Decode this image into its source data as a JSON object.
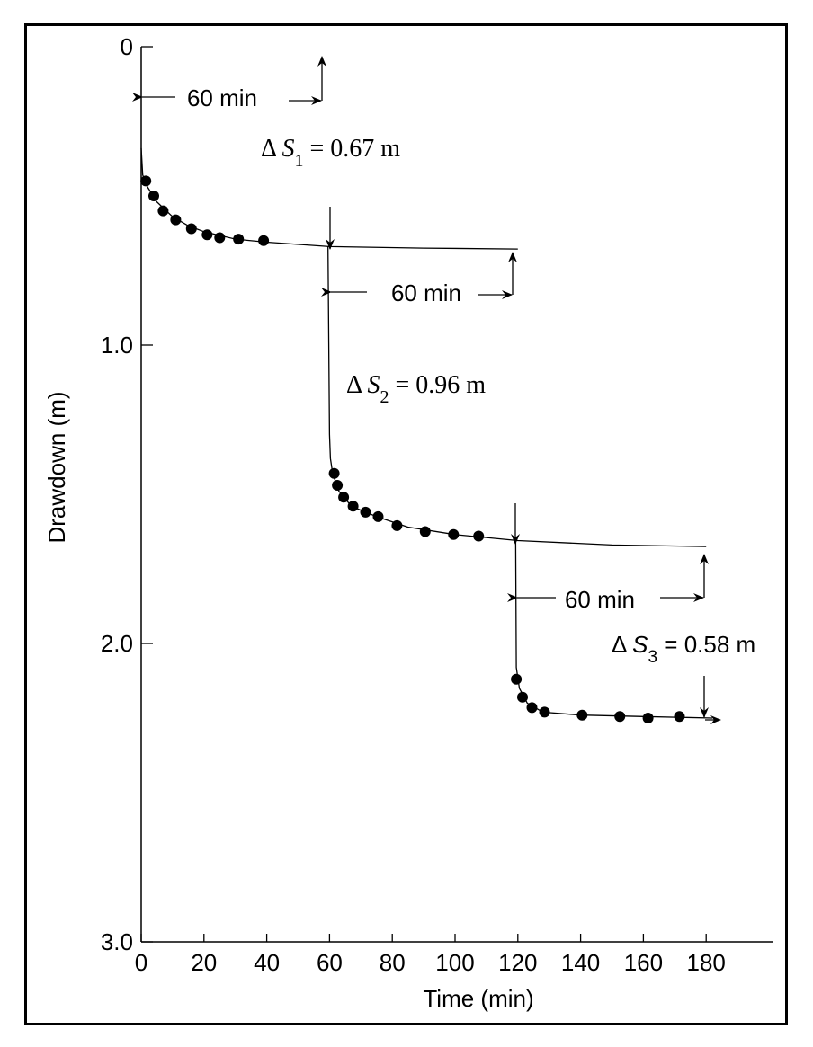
{
  "chart_data": {
    "type": "scatter",
    "title": "",
    "xlabel": "Time (min)",
    "ylabel": "Drawdown (m)",
    "xlim": [
      0,
      200
    ],
    "ylim": [
      3.0,
      0
    ],
    "x_ticks": [
      0,
      20,
      40,
      60,
      80,
      100,
      120,
      140,
      160,
      180
    ],
    "y_ticks": [
      0,
      1.0,
      2.0,
      3.0
    ],
    "y_tick_labels": [
      "0",
      "1.0",
      "2.0",
      "3.0"
    ],
    "grid": false,
    "points": [
      {
        "x": 1.5,
        "y": 0.45
      },
      {
        "x": 4,
        "y": 0.5
      },
      {
        "x": 7,
        "y": 0.55
      },
      {
        "x": 11,
        "y": 0.58
      },
      {
        "x": 16,
        "y": 0.61
      },
      {
        "x": 21,
        "y": 0.63
      },
      {
        "x": 25,
        "y": 0.64
      },
      {
        "x": 31,
        "y": 0.645
      },
      {
        "x": 39,
        "y": 0.65
      },
      {
        "x": 61.5,
        "y": 1.43
      },
      {
        "x": 62.5,
        "y": 1.47
      },
      {
        "x": 64.5,
        "y": 1.51
      },
      {
        "x": 67.5,
        "y": 1.54
      },
      {
        "x": 71.5,
        "y": 1.56
      },
      {
        "x": 75.5,
        "y": 1.575
      },
      {
        "x": 81.5,
        "y": 1.605
      },
      {
        "x": 90.5,
        "y": 1.625
      },
      {
        "x": 99.5,
        "y": 1.635
      },
      {
        "x": 107.5,
        "y": 1.64
      },
      {
        "x": 119.5,
        "y": 2.12
      },
      {
        "x": 121.5,
        "y": 2.18
      },
      {
        "x": 124.5,
        "y": 2.215
      },
      {
        "x": 128.5,
        "y": 2.23
      },
      {
        "x": 140.5,
        "y": 2.24
      },
      {
        "x": 152.5,
        "y": 2.245
      },
      {
        "x": 161.5,
        "y": 2.25
      },
      {
        "x": 171.5,
        "y": 2.245
      }
    ],
    "curves": [
      [
        [
          0,
          0.34
        ],
        [
          0.5,
          0.43
        ],
        [
          2,
          0.47
        ],
        [
          5,
          0.52
        ],
        [
          10,
          0.57
        ],
        [
          15,
          0.6
        ],
        [
          20,
          0.62
        ],
        [
          30,
          0.645
        ],
        [
          40,
          0.655
        ],
        [
          60,
          0.67
        ],
        [
          90,
          0.675
        ],
        [
          120,
          0.678
        ]
      ],
      [
        [
          59.5,
          0.67
        ],
        [
          60,
          1.3
        ],
        [
          60.3,
          1.38
        ],
        [
          61,
          1.43
        ],
        [
          63,
          1.49
        ],
        [
          67,
          1.54
        ],
        [
          75,
          1.575
        ],
        [
          85,
          1.61
        ],
        [
          100,
          1.635
        ],
        [
          120,
          1.655
        ],
        [
          150,
          1.67
        ],
        [
          180,
          1.675
        ]
      ],
      [
        [
          119.3,
          1.655
        ],
        [
          119.5,
          2.08
        ],
        [
          120.5,
          2.15
        ],
        [
          123,
          2.2
        ],
        [
          128,
          2.23
        ],
        [
          140,
          2.24
        ],
        [
          160,
          2.245
        ],
        [
          182,
          2.25
        ]
      ]
    ],
    "annotations": {
      "dim1": "60 min",
      "dim2": "60 min",
      "dim3": "60 min",
      "ds1_prefix": "Δ ",
      "ds1_sym": "S",
      "ds1_sub": "1",
      "ds1_val": " = 0.67 m",
      "ds2_prefix": "Δ ",
      "ds2_sym": "S",
      "ds2_sub": "2",
      "ds2_val": " = 0.96 m",
      "ds3_prefix": "Δ ",
      "ds3_sym": "S",
      "ds3_sub": "3",
      "ds3_val": " = 0.58 m"
    }
  }
}
